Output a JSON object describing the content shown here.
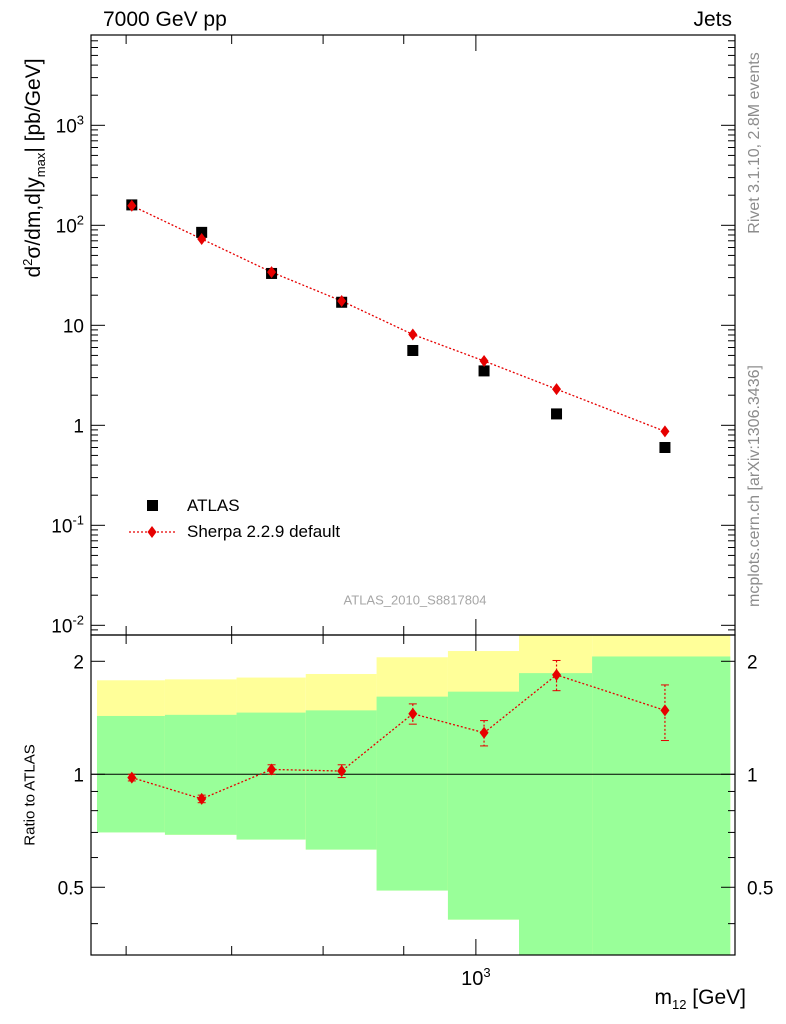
{
  "header": {
    "left": "7000 GeV pp",
    "right": "Jets"
  },
  "side_labels": {
    "rivet": "Rivet 3.1.10,  2.8M events",
    "source": "mcplots.cern.ch [arXiv:1306.3436]"
  },
  "analysis_id": "ATLAS_2010_S8817804",
  "axes": {
    "main_ylabel": "d²σ/dm,d|y_max| [pb/GeV]",
    "ratio_ylabel": "Ratio to ATLAS",
    "xlabel": "m_12 [GeV]"
  },
  "legend": {
    "data_label": "ATLAS",
    "mc_label": "Sherpa 2.2.9 default"
  },
  "colors": {
    "data": "#000000",
    "mc": "#e60000",
    "band_outer": "#ffff99",
    "band_inner": "#99ff99"
  },
  "chart_data": [
    {
      "type": "scatter",
      "panel": "main",
      "x_scale": "log",
      "y_scale": "log",
      "xlim": [
        570,
        1460
      ],
      "ylim": [
        0.008,
        8000
      ],
      "y_ticks": [
        "10^-2",
        "10^-1",
        "1",
        "10",
        "10^2",
        "10^3"
      ],
      "x_ticks": [
        "10^3"
      ],
      "bins": [
        [
          575,
          635
        ],
        [
          635,
          705
        ],
        [
          705,
          780
        ],
        [
          780,
          865
        ],
        [
          865,
          960
        ],
        [
          960,
          1065
        ],
        [
          1065,
          1185
        ],
        [
          1185,
          1450
        ]
      ],
      "series": [
        {
          "name": "ATLAS",
          "marker": "square",
          "x": [
            605,
            670,
            742,
            822,
            912,
            1012,
            1125,
            1318
          ],
          "values": [
            160,
            85,
            33,
            17,
            5.6,
            3.5,
            1.3,
            0.6
          ]
        },
        {
          "name": "Sherpa 2.2.9 default",
          "marker": "diamond",
          "line": "dotted",
          "x": [
            605,
            670,
            742,
            822,
            912,
            1012,
            1125,
            1318
          ],
          "values": [
            157,
            73,
            34,
            17.5,
            8.1,
            4.4,
            2.3,
            0.87
          ]
        }
      ]
    },
    {
      "type": "line",
      "panel": "ratio",
      "x_scale": "log",
      "ylim": [
        0.33,
        2.35
      ],
      "y_ticks": [
        "0.5",
        "1",
        "2"
      ],
      "reference_line": 1,
      "bands": {
        "edges": [
          575,
          635,
          705,
          780,
          865,
          960,
          1065,
          1185,
          1450
        ],
        "inner_lower": [
          0.7,
          0.69,
          0.67,
          0.63,
          0.49,
          0.41,
          0.33,
          0.33
        ],
        "inner_upper": [
          1.43,
          1.44,
          1.46,
          1.48,
          1.61,
          1.66,
          1.86,
          2.06
        ],
        "outer_lower": [
          0.7,
          0.69,
          0.67,
          0.63,
          0.49,
          0.41,
          0.33,
          0.33
        ],
        "outer_upper": [
          1.78,
          1.79,
          1.81,
          1.85,
          2.05,
          2.13,
          2.35,
          2.35
        ]
      },
      "series": [
        {
          "name": "Sherpa 2.2.9 default",
          "x": [
            605,
            670,
            742,
            822,
            912,
            1012,
            1125,
            1318
          ],
          "values": [
            0.98,
            0.86,
            1.03,
            1.02,
            1.45,
            1.29,
            1.84,
            1.48
          ],
          "err": [
            0.02,
            0.02,
            0.03,
            0.04,
            0.09,
            0.1,
            0.17,
            0.25
          ]
        }
      ]
    }
  ]
}
